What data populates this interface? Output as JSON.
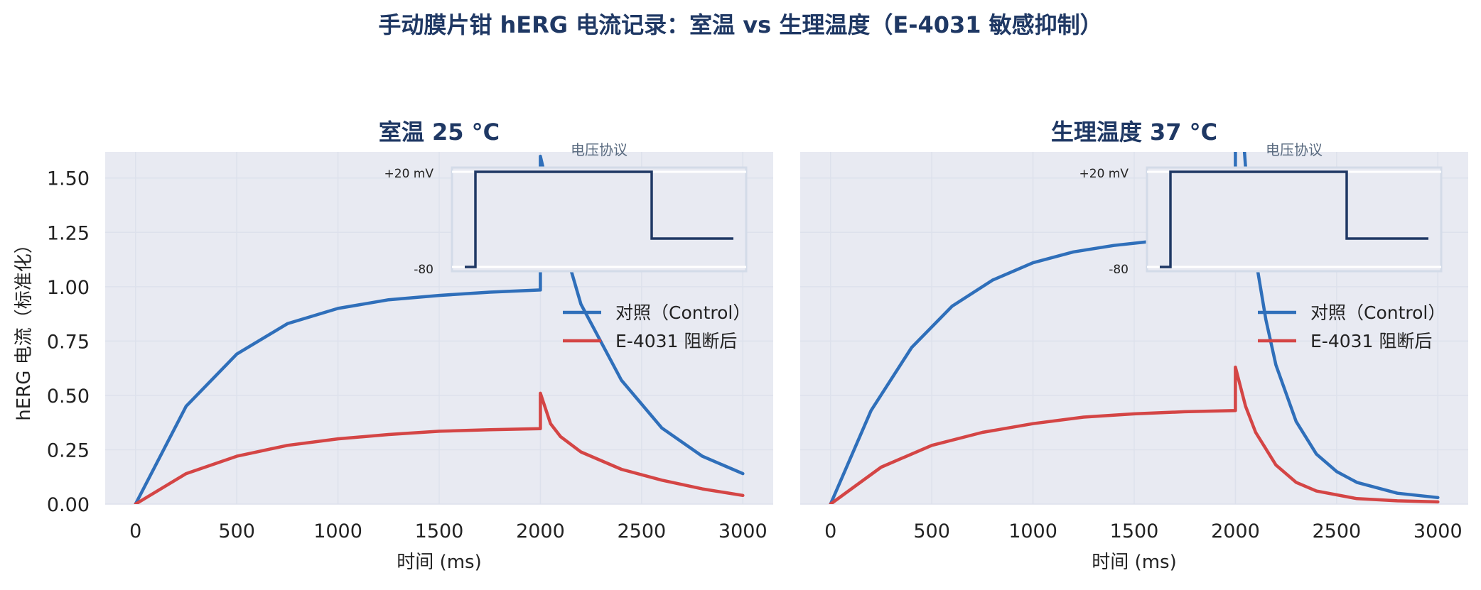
{
  "figure": {
    "title": "手动膜片钳 hERG 电流记录：室温 vs 生理温度（E-4031 敏感抑制）",
    "ylabel": "hERG 电流（标准化）",
    "colors": {
      "control": "#2f6fba",
      "blocked": "#d44545",
      "protocol": "#1f3864",
      "axes_bg": "#e8eaf2",
      "title": "#1f3864"
    }
  },
  "chart_data": [
    {
      "type": "line",
      "title": "室温 25 °C",
      "xlabel": "时间 (ms)",
      "ylabel": "hERG 电流（标准化）",
      "xlim": [
        -150,
        3150
      ],
      "ylim": [
        0,
        1.62
      ],
      "xticks": [
        0,
        500,
        1000,
        1500,
        2000,
        2500,
        3000
      ],
      "yticks": [
        "0.00",
        "0.25",
        "0.50",
        "0.75",
        "1.00",
        "1.25",
        "1.50"
      ],
      "grid": true,
      "legend_position": "right",
      "series": [
        {
          "name": "对照（Control）",
          "color": "#2f6fba",
          "x": [
            0,
            250,
            500,
            750,
            1000,
            1250,
            1500,
            1750,
            2000,
            2000,
            2050,
            2200,
            2400,
            2600,
            2800,
            3000
          ],
          "y": [
            0,
            0.45,
            0.69,
            0.83,
            0.9,
            0.94,
            0.96,
            0.975,
            0.985,
            1.6,
            1.4,
            0.92,
            0.57,
            0.35,
            0.22,
            0.14
          ]
        },
        {
          "name": "E-4031 阻断后",
          "color": "#d44545",
          "x": [
            0,
            250,
            500,
            750,
            1000,
            1250,
            1500,
            1750,
            2000,
            2000,
            2050,
            2100,
            2200,
            2400,
            2600,
            2800,
            3000
          ],
          "y": [
            0,
            0.14,
            0.22,
            0.27,
            0.3,
            0.32,
            0.335,
            0.342,
            0.347,
            0.51,
            0.37,
            0.31,
            0.24,
            0.16,
            0.11,
            0.07,
            0.04
          ]
        }
      ],
      "inset": {
        "title": "电压协议",
        "labels": [
          "+20 mV",
          "-80"
        ]
      }
    },
    {
      "type": "line",
      "title": "生理温度 37 °C",
      "xlabel": "时间 (ms)",
      "ylabel": "",
      "xlim": [
        -150,
        3150
      ],
      "ylim": [
        0,
        1.62
      ],
      "xticks": [
        0,
        500,
        1000,
        1500,
        2000,
        2500,
        3000
      ],
      "yticks": [],
      "grid": true,
      "legend_position": "right",
      "series": [
        {
          "name": "对照（Control）",
          "color": "#2f6fba",
          "x": [
            0,
            200,
            400,
            600,
            800,
            1000,
            1200,
            1400,
            1600,
            1800,
            2000,
            2000,
            2050,
            2100,
            2150,
            2200,
            2300,
            2400,
            2500,
            2600,
            2800,
            3000
          ],
          "y": [
            0,
            0.43,
            0.72,
            0.91,
            1.03,
            1.11,
            1.16,
            1.19,
            1.21,
            1.23,
            1.24,
            2.2,
            1.55,
            1.13,
            0.85,
            0.64,
            0.38,
            0.23,
            0.15,
            0.1,
            0.05,
            0.03
          ]
        },
        {
          "name": "E-4031 阻断后",
          "color": "#d44545",
          "x": [
            0,
            250,
            500,
            750,
            1000,
            1250,
            1500,
            1750,
            2000,
            2000,
            2050,
            2100,
            2200,
            2300,
            2400,
            2600,
            2800,
            3000
          ],
          "y": [
            0,
            0.17,
            0.27,
            0.33,
            0.37,
            0.4,
            0.415,
            0.425,
            0.43,
            0.63,
            0.45,
            0.33,
            0.18,
            0.1,
            0.06,
            0.025,
            0.015,
            0.01
          ]
        }
      ],
      "inset": {
        "title": "电压协议",
        "labels": [
          "+20 mV",
          "-80"
        ]
      }
    }
  ]
}
